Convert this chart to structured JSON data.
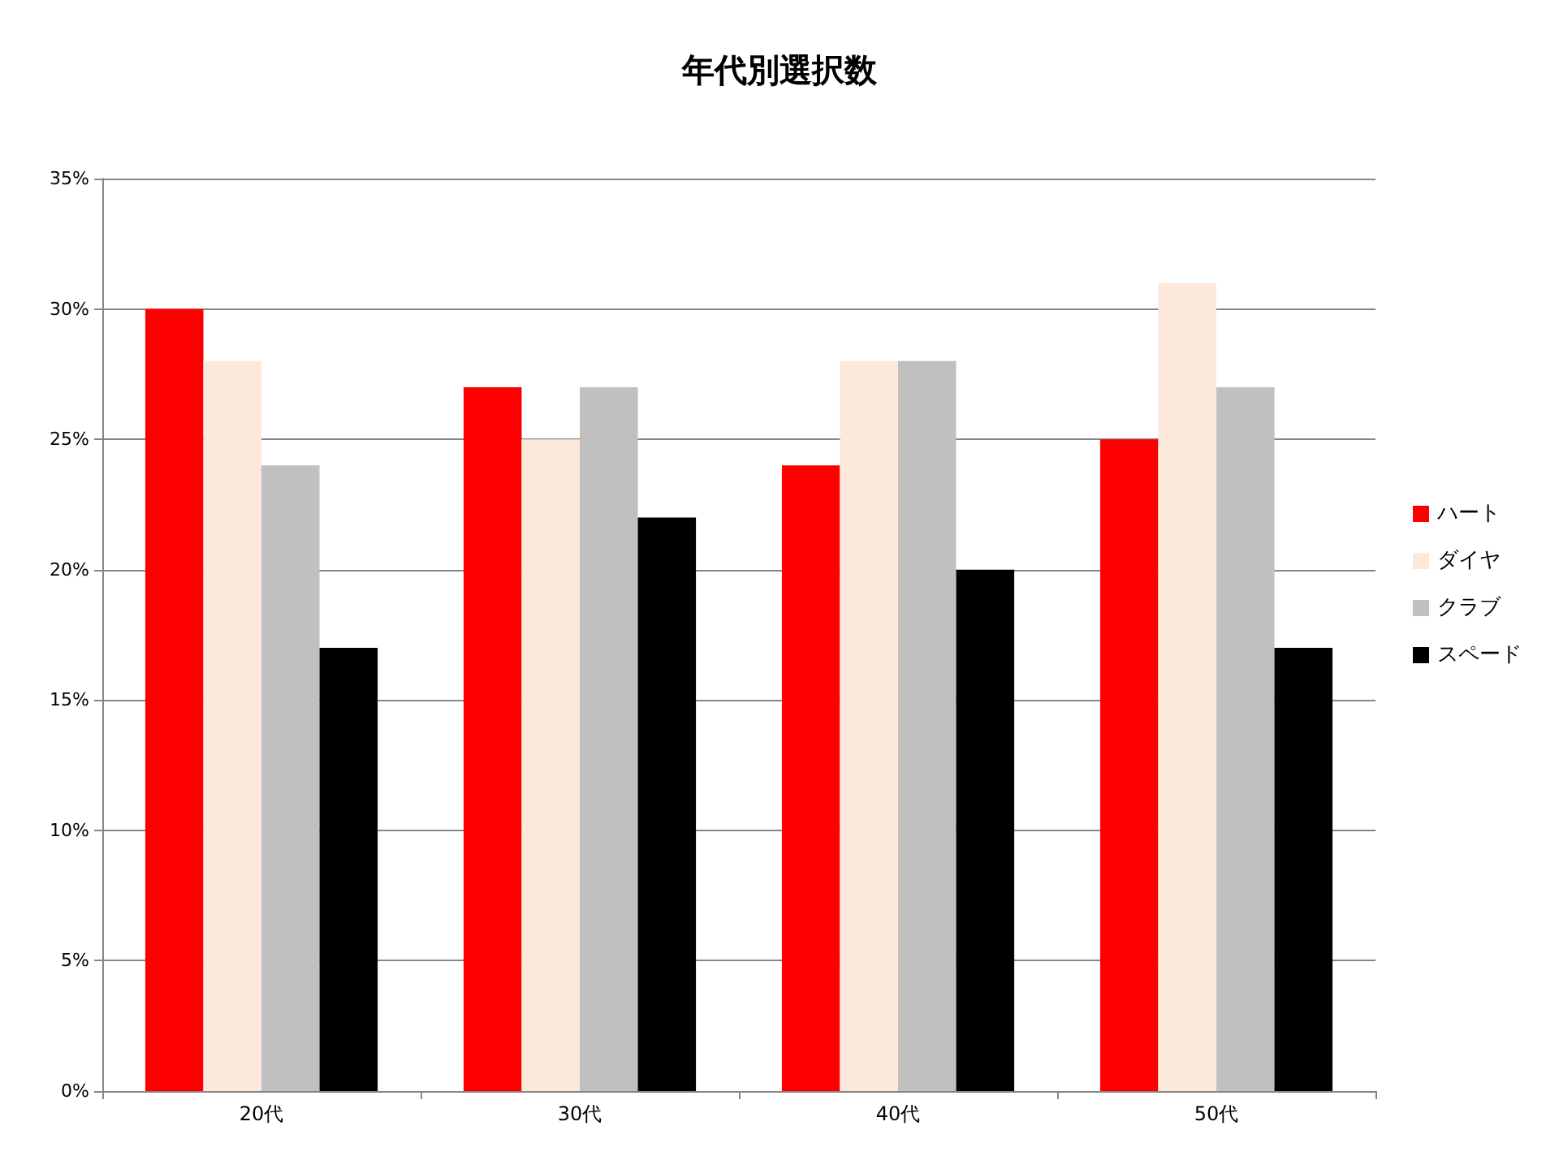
{
  "chart_data": {
    "type": "bar",
    "title": "年代別選択数",
    "categories": [
      "20代",
      "30代",
      "40代",
      "50代"
    ],
    "series": [
      {
        "name": "ハート",
        "color": "#ff0000",
        "values": [
          30,
          27,
          24,
          25
        ]
      },
      {
        "name": "ダイヤ",
        "color": "#fce9dc",
        "values": [
          28,
          25,
          28,
          31
        ]
      },
      {
        "name": "クラブ",
        "color": "#c0c0c0",
        "values": [
          24,
          27,
          28,
          27
        ]
      },
      {
        "name": "スペード",
        "color": "#000000",
        "values": [
          17,
          22,
          20,
          17
        ]
      }
    ],
    "ylim": [
      0,
      35
    ],
    "yticks": [
      {
        "value": 0,
        "label": "0%"
      },
      {
        "value": 5,
        "label": "5%"
      },
      {
        "value": 10,
        "label": "10%"
      },
      {
        "value": 15,
        "label": "15%"
      },
      {
        "value": 20,
        "label": "20%"
      },
      {
        "value": 25,
        "label": "25%"
      },
      {
        "value": 30,
        "label": "30%"
      },
      {
        "value": 35,
        "label": "35%"
      }
    ],
    "grid": "y",
    "legend": "right"
  }
}
